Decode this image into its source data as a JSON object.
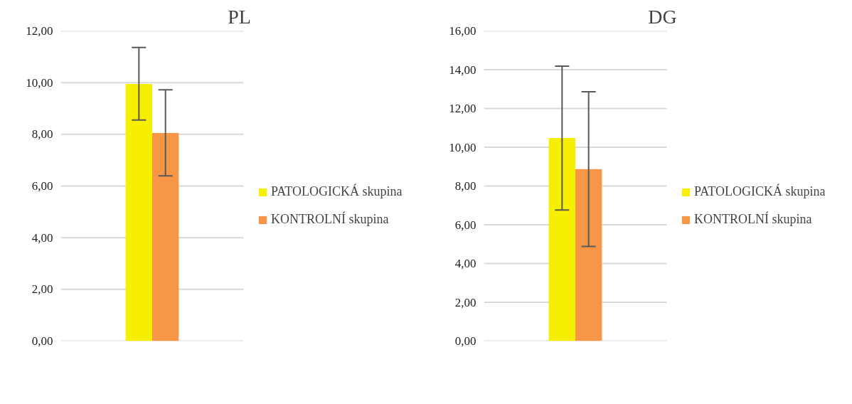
{
  "chart_data": [
    {
      "type": "bar",
      "title": "PL",
      "categories": [
        null
      ],
      "ylim": [
        0,
        12
      ],
      "yticks": [
        {
          "value": 0,
          "label": "0,00"
        },
        {
          "value": 2,
          "label": "2,00"
        },
        {
          "value": 4,
          "label": "4,00"
        },
        {
          "value": 6,
          "label": "6,00"
        },
        {
          "value": 8,
          "label": "8,00"
        },
        {
          "value": 10,
          "label": "10,00"
        },
        {
          "value": 12,
          "label": "12,00"
        }
      ],
      "grid": "y",
      "legend": "right",
      "series": [
        {
          "name": "PATOLOGICKÁ skupina",
          "color": "#f7ef00",
          "values": [
            9.95
          ],
          "errors": [
            [
              8.55,
              11.36
            ]
          ]
        },
        {
          "name": "KONTROLNÍ skupina",
          "color": "#f79646",
          "values": [
            8.05
          ],
          "errors": [
            [
              6.39,
              9.72
            ]
          ]
        }
      ]
    },
    {
      "type": "bar",
      "title": "DG",
      "categories": [
        null
      ],
      "ylim": [
        0,
        16
      ],
      "yticks": [
        {
          "value": 0,
          "label": "0,00"
        },
        {
          "value": 2,
          "label": "2,00"
        },
        {
          "value": 4,
          "label": "4,00"
        },
        {
          "value": 6,
          "label": "6,00"
        },
        {
          "value": 8,
          "label": "8,00"
        },
        {
          "value": 10,
          "label": "10,00"
        },
        {
          "value": 12,
          "label": "12,00"
        },
        {
          "value": 14,
          "label": "14,00"
        },
        {
          "value": 16,
          "label": "16,00"
        }
      ],
      "grid": "y",
      "legend": "right",
      "series": [
        {
          "name": "PATOLOGICKÁ skupina",
          "color": "#f7ef00",
          "values": [
            10.48
          ],
          "errors": [
            [
              6.76,
              14.18
            ]
          ]
        },
        {
          "name": "KONTROLNÍ skupina",
          "color": "#f79646",
          "values": [
            8.87
          ],
          "errors": [
            [
              4.88,
              12.86
            ]
          ]
        }
      ]
    }
  ]
}
